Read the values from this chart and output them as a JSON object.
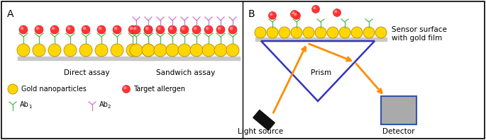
{
  "fig_width": 6.85,
  "fig_height": 1.98,
  "dpi": 100,
  "background": "#ffffff",
  "panel_A_label": "A",
  "panel_B_label": "B",
  "direct_assay_label": "Direct assay",
  "sandwich_assay_label": "Sandwich assay",
  "legend_gold": "Gold nanoparticles",
  "legend_target": "Target allergen",
  "prism_label": "Prism",
  "sensor_label": "Sensor surface\nwith gold film",
  "light_label": "Light source",
  "detector_label": "Detector",
  "gold_color": "#FFD700",
  "gold_edge": "#B8860B",
  "target_outer": "#FF3333",
  "target_inner": "#FF8888",
  "ab1_color": "#55BB55",
  "ab2_color": "#CC77CC",
  "prism_color": "#3333BB",
  "arrow_color": "#FF8C00",
  "surface_color": "#C8C8C8",
  "detector_fill": "#AAAAAA",
  "detector_border": "#3355AA",
  "light_source_color": "#111111"
}
